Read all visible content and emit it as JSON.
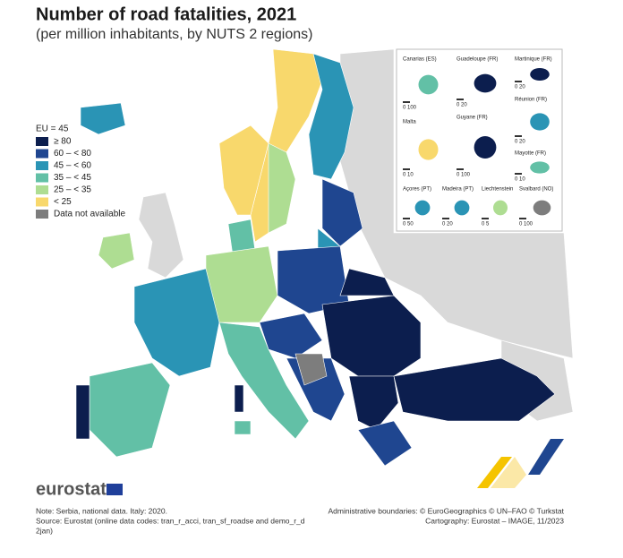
{
  "header": {
    "title": "Number of road fatalities, 2021",
    "subtitle": "(per million inhabitants, by NUTS 2 regions)"
  },
  "legend": {
    "title": "EU = 45",
    "items": [
      {
        "label": "≥ 80",
        "color": "#0c1e4e"
      },
      {
        "label": "60 – < 80",
        "color": "#1f4690"
      },
      {
        "label": "45 – < 60",
        "color": "#2a94b5"
      },
      {
        "label": "35 – < 45",
        "color": "#62c0a6"
      },
      {
        "label": "25 – < 35",
        "color": "#aedd92"
      },
      {
        "label": "< 25",
        "color": "#f8d86c"
      },
      {
        "label": "Data not available",
        "color": "#7d7d7d"
      }
    ]
  },
  "insets": [
    {
      "label": "Canarias (ES)",
      "scale": "0  100"
    },
    {
      "label": "Guadeloupe (FR)",
      "scale": "0  20"
    },
    {
      "label": "Martinique (FR)",
      "scale": "0  20"
    },
    {
      "label": "Réunion (FR)",
      "scale": "0  20"
    },
    {
      "label": "Malta",
      "scale": "0  10"
    },
    {
      "label": "Guyane (FR)",
      "scale": "0  100"
    },
    {
      "label": "Mayotte (FR)",
      "scale": "0  10"
    },
    {
      "label": "Açores (PT)",
      "scale": "0  50"
    },
    {
      "label": "Madeira (PT)",
      "scale": "0  20"
    },
    {
      "label": "Liechtenstein",
      "scale": "0  5"
    },
    {
      "label": "Svalbard (NO)",
      "scale": "0  100"
    }
  ],
  "logo": "eurostat",
  "footer": {
    "note": "Note: Serbia, national data. Italy: 2020.",
    "source": "Source: Eurostat (online data codes: tran_r_acci, tran_sf_roadse and demo_r_d",
    "source2": "2jan)",
    "boundaries": "Administrative boundaries: © EuroGeographics © UN–FAO © Turkstat",
    "cartography": "Cartography: Eurostat – IMAGE, 11/2023"
  }
}
